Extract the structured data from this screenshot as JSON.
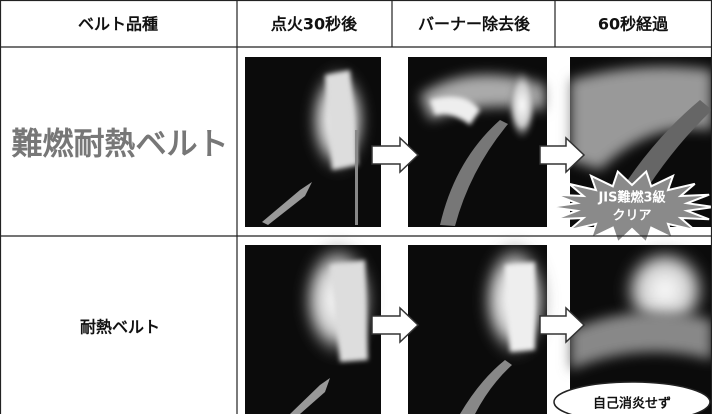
{
  "table": {
    "header": [
      "ベルト品種",
      "点火30秒後",
      "バーナー除去後",
      "60秒経過"
    ],
    "rows": [
      {
        "label": "難燃耐熱ベルト",
        "badge": [
          "JIS難燃3級",
          "クリア"
        ]
      },
      {
        "label": "耐熱ベルト",
        "badge": [
          "自己消炎せず"
        ]
      }
    ]
  }
}
